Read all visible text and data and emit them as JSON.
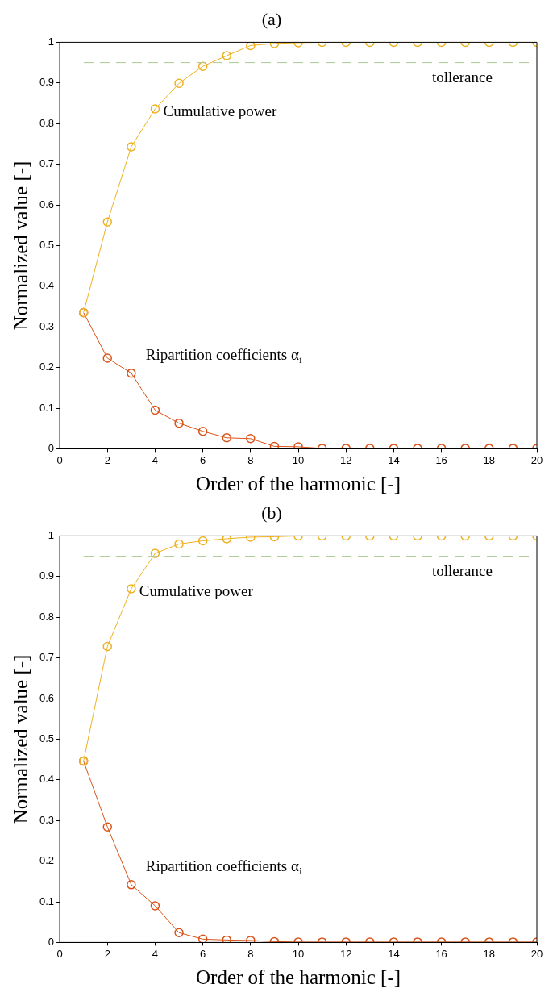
{
  "chart_data": [
    {
      "type": "line",
      "title": "(a)",
      "xlabel": "Order of the harmonic [-]",
      "ylabel": "Normalized value [-]",
      "x": [
        1,
        2,
        3,
        4,
        5,
        6,
        7,
        8,
        9,
        10,
        11,
        12,
        13,
        14,
        15,
        16,
        17,
        18,
        19,
        20
      ],
      "xlim": [
        0,
        20
      ],
      "xticks": [
        0,
        2,
        4,
        6,
        8,
        10,
        12,
        14,
        16,
        18,
        20
      ],
      "ylim": [
        0,
        1
      ],
      "yticks": [
        0,
        0.1,
        0.2,
        0.3,
        0.4,
        0.5,
        0.6,
        0.7,
        0.8,
        0.9,
        1
      ],
      "grid": false,
      "legend": false,
      "marker": "circle",
      "line_style": "solid",
      "series": [
        {
          "color": "#edb120",
          "values": [
            0.335,
            0.558,
            0.743,
            0.836,
            0.899,
            0.941,
            0.967,
            0.992,
            0.997,
            0.999,
            1,
            1,
            1,
            1,
            1,
            1,
            1,
            1,
            1,
            1
          ]
        },
        {
          "color": "#d95319",
          "values": [
            0.335,
            0.223,
            0.186,
            0.095,
            0.063,
            0.043,
            0.027,
            0.025,
            0.006,
            0.005,
            0.001,
            0.001,
            0.001,
            0.001,
            0.001,
            0.001,
            0.001,
            0.001,
            0.001,
            0.001
          ]
        }
      ],
      "ref_lines": [
        {
          "axis": "y",
          "value": 0.95,
          "label": "tollerance",
          "color": "#a8c890",
          "line_style": "dashed"
        }
      ],
      "annotations": [
        "Cumulative power",
        "Ripartition coefficients α$_{i}$"
      ]
    },
    {
      "type": "line",
      "title": "(b)",
      "xlabel": "Order of the harmonic [-]",
      "ylabel": "Normalized value [-]",
      "x": [
        1,
        2,
        3,
        4,
        5,
        6,
        7,
        8,
        9,
        10,
        11,
        12,
        13,
        14,
        15,
        16,
        17,
        18,
        19,
        20
      ],
      "xlim": [
        0,
        20
      ],
      "xticks": [
        0,
        2,
        4,
        6,
        8,
        10,
        12,
        14,
        16,
        18,
        20
      ],
      "ylim": [
        0,
        1
      ],
      "yticks": [
        0,
        0.1,
        0.2,
        0.3,
        0.4,
        0.5,
        0.6,
        0.7,
        0.8,
        0.9,
        1
      ],
      "grid": false,
      "legend": false,
      "marker": "circle",
      "line_style": "solid",
      "series": [
        {
          "color": "#edb120",
          "values": [
            0.446,
            0.728,
            0.87,
            0.957,
            0.98,
            0.988,
            0.993,
            0.997,
            0.998,
            1,
            1,
            1,
            1,
            1,
            1,
            1,
            1,
            1,
            1,
            1
          ]
        },
        {
          "color": "#d95319",
          "values": [
            0.446,
            0.284,
            0.142,
            0.09,
            0.024,
            0.008,
            0.006,
            0.005,
            0.002,
            0.001,
            0.001,
            0.001,
            0.001,
            0.001,
            0.001,
            0.001,
            0.001,
            0.001,
            0.001,
            0.001
          ]
        }
      ],
      "ref_lines": [
        {
          "axis": "y",
          "value": 0.95,
          "label": "tollerance",
          "color": "#a8c890",
          "line_style": "dashed"
        }
      ],
      "annotations": [
        "Cumulative power",
        "Ripartition coefficients α$_{i}$"
      ]
    }
  ]
}
